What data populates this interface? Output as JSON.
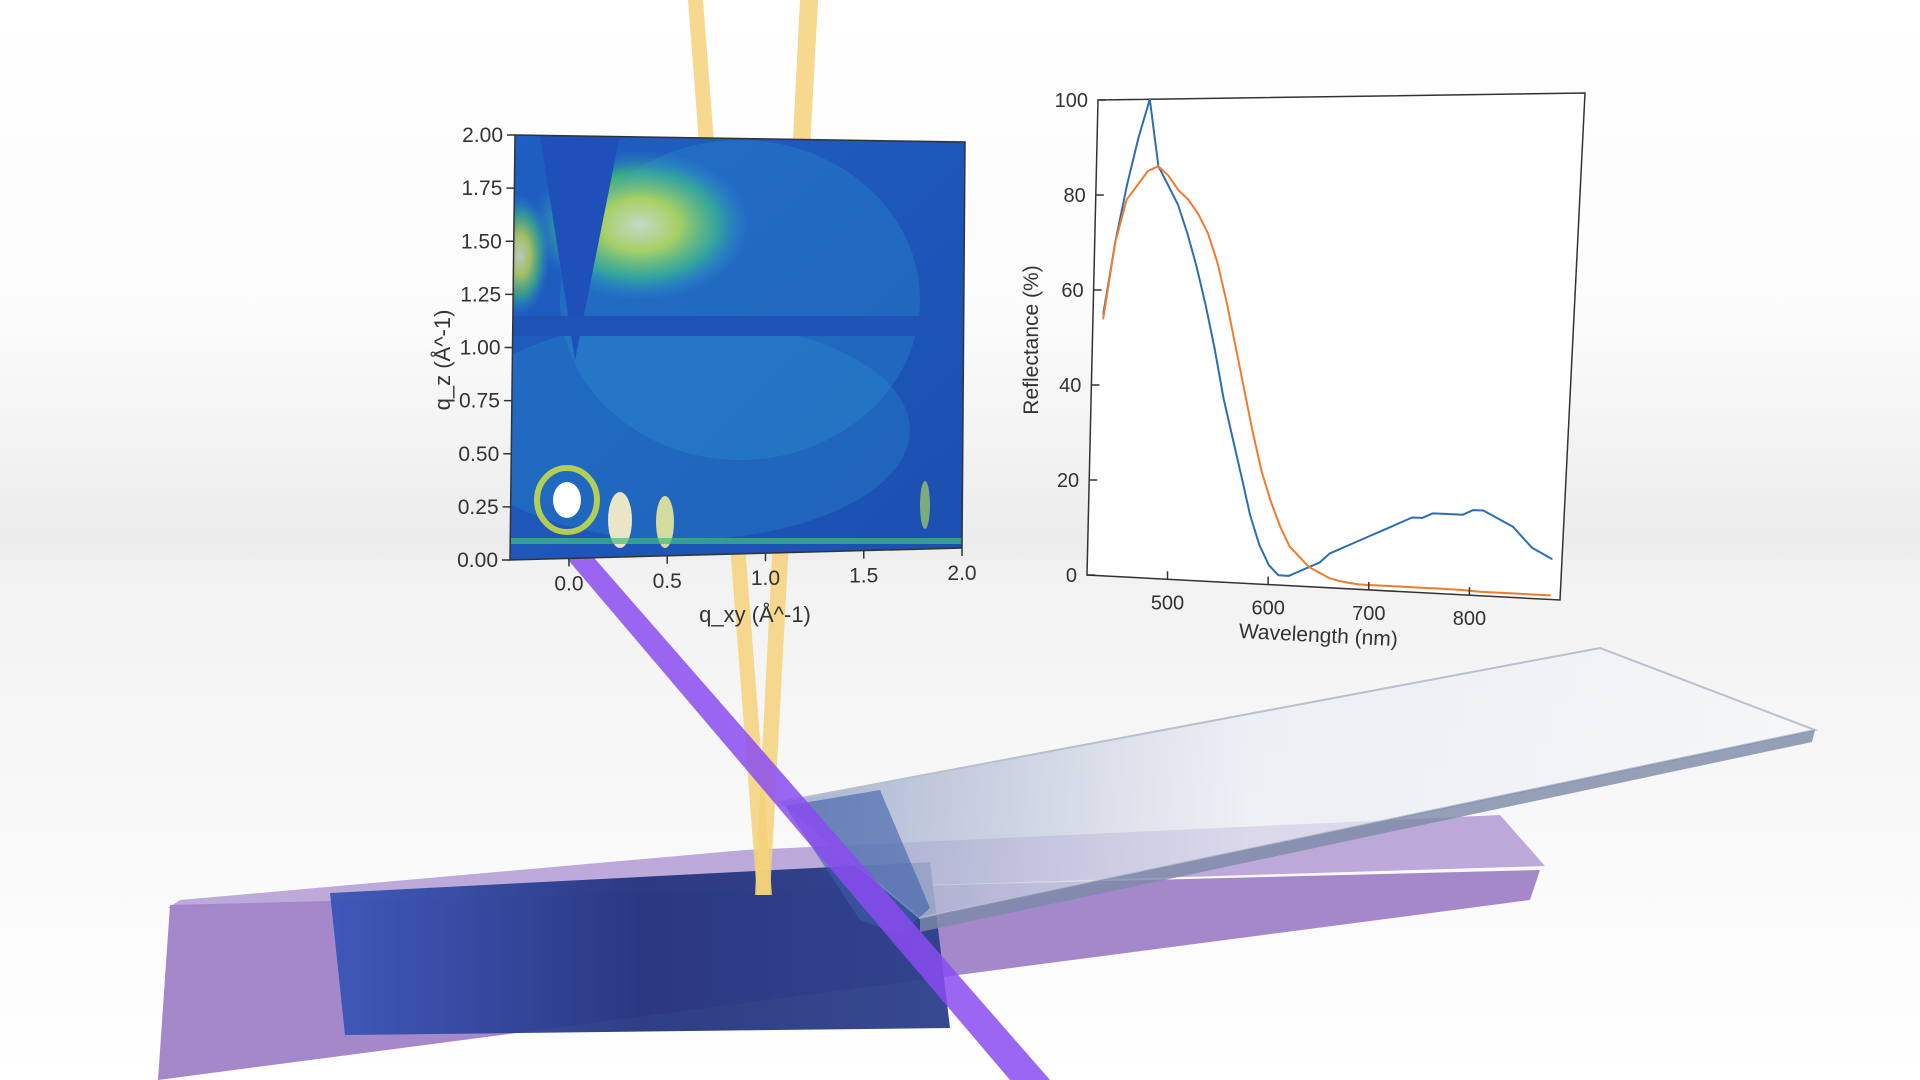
{
  "colors": {
    "series_blue": "#2a6fb1",
    "series_orange": "#f07b2e",
    "xray_beam": "#f5d27a",
    "laser_beam": "#8a4cf0",
    "substrate": "#9a7bc4",
    "film": "#2c3f8a"
  },
  "giwaxs": {
    "xlabel": "q_xy (Å^-1)",
    "ylabel": "q_z (Å^-1)",
    "x_ticks": [
      "0.0",
      "0.5",
      "1.0",
      "1.5",
      "2.0"
    ],
    "y_ticks": [
      "0.00",
      "0.25",
      "0.50",
      "0.75",
      "1.00",
      "1.25",
      "1.50",
      "1.75",
      "2.00"
    ],
    "xlim": [
      -0.3,
      2.0
    ],
    "ylim": [
      0.0,
      2.0
    ]
  },
  "chart_data": {
    "type": "line",
    "xlabel": "Wavelength (nm)",
    "ylabel": "Reflectance (%)",
    "xlim": [
      420,
      890
    ],
    "ylim": [
      0,
      100
    ],
    "x_ticks": [
      "500",
      "600",
      "700",
      "800"
    ],
    "y_ticks": [
      "0",
      "20",
      "40",
      "60",
      "80",
      "100"
    ],
    "grid": false,
    "x": [
      430,
      440,
      450,
      460,
      470,
      480,
      490,
      500,
      510,
      520,
      530,
      540,
      550,
      560,
      570,
      580,
      590,
      600,
      610,
      620,
      630,
      640,
      650,
      660,
      670,
      680,
      690,
      700,
      710,
      720,
      730,
      740,
      750,
      760,
      770,
      780,
      790,
      800,
      810,
      820,
      830,
      840,
      850,
      860,
      870,
      880
    ],
    "series": [
      {
        "color": "blue",
        "values": [
          55,
          70,
          82,
          92,
          100,
          86,
          82,
          78,
          72,
          65,
          57,
          48,
          38,
          30,
          22,
          14,
          8,
          4,
          2,
          2,
          3,
          4,
          5,
          7,
          8,
          9,
          10,
          11,
          12,
          13,
          14,
          15,
          15,
          16,
          16,
          16,
          16,
          17,
          17,
          16,
          15,
          14,
          12,
          10,
          9,
          8
        ]
      },
      {
        "color": "orange",
        "values": [
          54,
          70,
          79,
          82,
          85,
          86,
          84,
          81,
          79,
          76,
          72,
          66,
          58,
          49,
          40,
          31,
          23,
          17,
          12,
          8,
          6,
          4,
          3,
          2,
          1.5,
          1.2,
          1,
          1,
          1,
          1,
          1,
          1,
          1,
          1,
          1,
          1,
          1,
          0.9,
          0.8,
          0.8,
          0.8,
          0.8,
          0.8,
          0.8,
          0.8,
          0.8
        ]
      }
    ]
  }
}
